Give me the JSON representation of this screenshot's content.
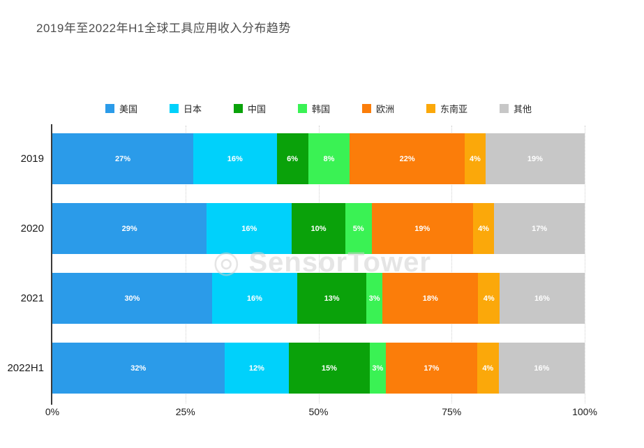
{
  "title": "2019年至2022年H1全球工具应用收入分布趋势",
  "watermark": "SensorTower",
  "chart_data": {
    "type": "bar",
    "stacked": true,
    "orientation": "horizontal",
    "title": "2019年至2022年H1全球工具应用收入分布趋势",
    "categories": [
      "2019",
      "2020",
      "2021",
      "2022H1"
    ],
    "series": [
      {
        "name": "美国",
        "color": "#2B9BE9",
        "values": [
          27,
          29,
          30,
          32
        ]
      },
      {
        "name": "日本",
        "color": "#00D1FB",
        "values": [
          16,
          16,
          16,
          12
        ]
      },
      {
        "name": "中国",
        "color": "#0AA20A",
        "values": [
          6,
          10,
          13,
          15
        ]
      },
      {
        "name": "韩国",
        "color": "#3AF254",
        "values": [
          8,
          5,
          3,
          3
        ]
      },
      {
        "name": "欧洲",
        "color": "#FB7D0A",
        "values": [
          22,
          19,
          18,
          17
        ]
      },
      {
        "name": "东南亚",
        "color": "#FBA80A",
        "values": [
          4,
          4,
          4,
          4
        ]
      },
      {
        "name": "其他",
        "color": "#C7C7C7",
        "values": [
          19,
          17,
          16,
          16
        ]
      }
    ],
    "x_ticks": [
      "0%",
      "25%",
      "50%",
      "75%",
      "100%"
    ],
    "xlim": [
      0,
      100
    ],
    "value_suffix": "%",
    "grid": "dotted-vertical",
    "legend_position": "top"
  }
}
